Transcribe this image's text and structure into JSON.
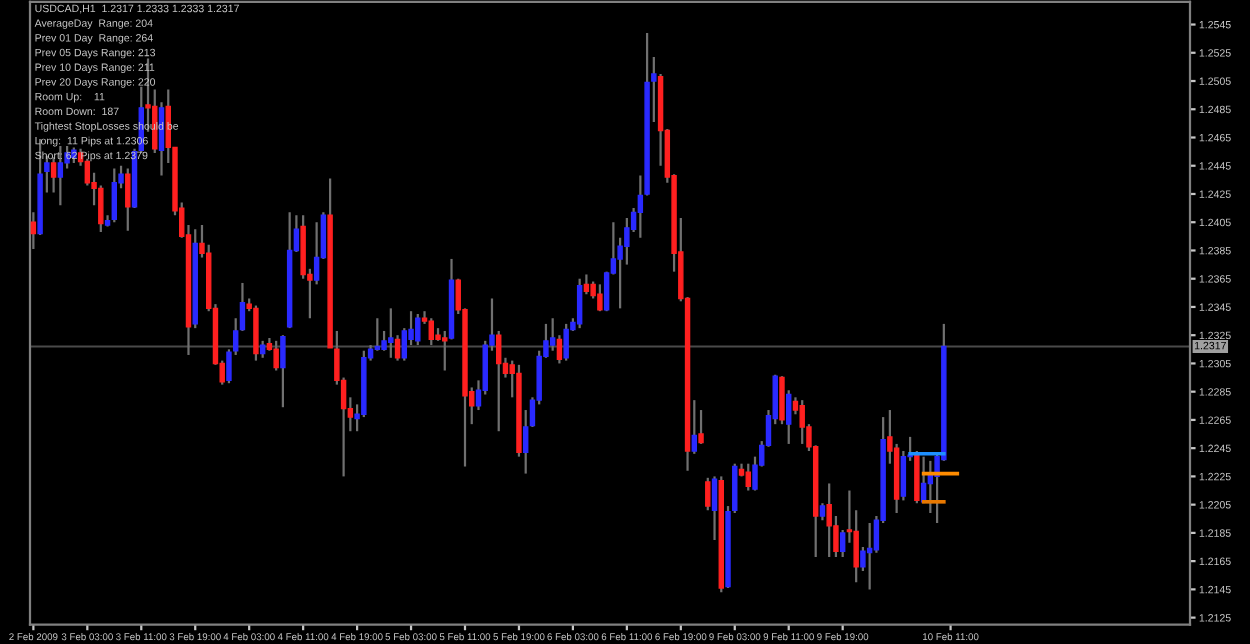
{
  "chart_data": {
    "type": "candlestick",
    "title": "USDCAD,H1  1.2317 1.2333 1.2333 1.2317",
    "annotations": [
      "AverageDay  Range: 204",
      "Prev 01 Day  Range: 264",
      "Prev 05 Days Range: 213",
      "Prev 10 Days Range: 211",
      "Prev 20 Days Range: 220",
      "Room Up:    11",
      "Room Down:  187",
      "Tightest StopLosses should be",
      "Long:  11 Pips at 1.2306",
      "Short: 62 Pips at 1.2379"
    ],
    "categories": [
      "2 Feb 2009",
      null,
      null,
      null,
      null,
      null,
      null,
      null,
      "3 Feb 03:00",
      null,
      null,
      null,
      null,
      null,
      null,
      null,
      "3 Feb 11:00",
      null,
      null,
      null,
      null,
      null,
      null,
      null,
      "3 Feb 19:00",
      null,
      null,
      null,
      null,
      null,
      null,
      null,
      "4 Feb 03:00",
      null,
      null,
      null,
      null,
      null,
      null,
      null,
      "4 Feb 11:00",
      null,
      null,
      null,
      null,
      null,
      null,
      null,
      "4 Feb 19:00",
      null,
      null,
      null,
      null,
      null,
      null,
      null,
      "5 Feb 03:00",
      null,
      null,
      null,
      null,
      null,
      null,
      null,
      "5 Feb 11:00",
      null,
      null,
      null,
      null,
      null,
      null,
      null,
      "5 Feb 19:00",
      null,
      null,
      null,
      null,
      null,
      null,
      null,
      "6 Feb 03:00",
      null,
      null,
      null,
      null,
      null,
      null,
      null,
      "6 Feb 11:00",
      null,
      null,
      null,
      null,
      null,
      null,
      null,
      "6 Feb 19:00",
      null,
      null,
      null,
      null,
      null,
      null,
      null,
      "9 Feb 03:00",
      null,
      null,
      null,
      null,
      null,
      null,
      null,
      "9 Feb 11:00",
      null,
      null,
      null,
      null,
      null,
      null,
      null,
      "9 Feb 19:00",
      null,
      null,
      null,
      null,
      null,
      null,
      null,
      null,
      null,
      null,
      null,
      null,
      null,
      null,
      null,
      "10 Feb 11:00",
      null,
      null,
      null,
      null,
      null,
      null,
      null,
      null,
      null,
      null,
      null,
      null,
      null,
      null,
      null,
      null,
      null,
      null,
      null,
      null,
      null,
      null,
      null,
      null,
      null,
      null,
      null,
      null,
      null,
      null,
      null,
      null,
      null,
      null,
      null
    ],
    "ohlc": [
      [
        1.2405,
        1.2412,
        1.2386,
        1.2397
      ],
      [
        1.2397,
        1.2464,
        1.2396,
        1.2439
      ],
      [
        1.2441,
        1.2452,
        1.2426,
        1.2447
      ],
      [
        1.2447,
        1.2451,
        1.2426,
        1.2437
      ],
      [
        1.2437,
        1.2459,
        1.2417,
        1.2447
      ],
      [
        1.2447,
        1.2459,
        1.2443,
        1.2454
      ],
      [
        1.2451,
        1.2458,
        1.2447,
        1.2456
      ],
      [
        1.2454,
        1.2457,
        1.2445,
        1.2448
      ],
      [
        1.2448,
        1.245,
        1.2431,
        1.2433
      ],
      [
        1.2433,
        1.244,
        1.2417,
        1.2429
      ],
      [
        1.2429,
        1.2431,
        1.2398,
        1.2404
      ],
      [
        1.2403,
        1.241,
        1.2402,
        1.2406
      ],
      [
        1.2407,
        1.2443,
        1.2405,
        1.2433
      ],
      [
        1.2433,
        1.2445,
        1.2429,
        1.2439
      ],
      [
        1.2439,
        1.2443,
        1.2399,
        1.2416
      ],
      [
        1.2416,
        1.2457,
        1.2415,
        1.2455
      ],
      [
        1.2456,
        1.2501,
        1.2454,
        1.2486
      ],
      [
        1.2488,
        1.2521,
        1.2469,
        1.2486
      ],
      [
        1.2487,
        1.2499,
        1.2454,
        1.2457
      ],
      [
        1.2456,
        1.249,
        1.2438,
        1.2486
      ],
      [
        1.2487,
        1.2499,
        1.2447,
        1.2458
      ],
      [
        1.2458,
        1.2458,
        1.241,
        1.2413
      ],
      [
        1.2415,
        1.2419,
        1.2394,
        1.2395
      ],
      [
        1.2396,
        1.2403,
        1.2311,
        1.2331
      ],
      [
        1.2333,
        1.24,
        1.233,
        1.239
      ],
      [
        1.239,
        1.2403,
        1.238,
        1.2383
      ],
      [
        1.2383,
        1.2389,
        1.2342,
        1.2344
      ],
      [
        1.2344,
        1.2347,
        1.2304,
        1.2305
      ],
      [
        1.2305,
        1.2307,
        1.229,
        1.2292
      ],
      [
        1.2293,
        1.2315,
        1.2291,
        1.2313
      ],
      [
        1.2314,
        1.2337,
        1.2311,
        1.2328
      ],
      [
        1.2329,
        1.2362,
        1.2328,
        1.2348
      ],
      [
        1.2347,
        1.2351,
        1.2342,
        1.2344
      ],
      [
        1.2344,
        1.2346,
        1.2307,
        1.2312
      ],
      [
        1.2312,
        1.2321,
        1.2309,
        1.2318
      ],
      [
        1.2319,
        1.2323,
        1.2314,
        1.2315
      ],
      [
        1.2315,
        1.2321,
        1.23,
        1.2302
      ],
      [
        1.2302,
        1.2325,
        1.2274,
        1.2324
      ],
      [
        1.2331,
        1.2412,
        1.233,
        1.2385
      ],
      [
        1.2385,
        1.241,
        1.2384,
        1.24
      ],
      [
        1.2402,
        1.241,
        1.2365,
        1.2368
      ],
      [
        1.2368,
        1.2372,
        1.2337,
        1.2364
      ],
      [
        1.2364,
        1.2405,
        1.2361,
        1.238
      ],
      [
        1.238,
        1.2412,
        1.2379,
        1.241
      ],
      [
        1.241,
        1.2436,
        1.2316,
        1.2316
      ],
      [
        1.2315,
        1.2328,
        1.229,
        1.2293
      ],
      [
        1.2293,
        1.2295,
        1.2225,
        1.2273
      ],
      [
        1.2273,
        1.2281,
        1.2257,
        1.2267
      ],
      [
        1.2266,
        1.2276,
        1.2257,
        1.2269
      ],
      [
        1.2269,
        1.2314,
        1.2267,
        1.2309
      ],
      [
        1.2309,
        1.2318,
        1.2307,
        1.2315
      ],
      [
        1.2315,
        1.2337,
        1.2314,
        1.2317
      ],
      [
        1.2315,
        1.2328,
        1.2314,
        1.2321
      ],
      [
        1.232,
        1.2344,
        1.2309,
        1.2323
      ],
      [
        1.2322,
        1.2325,
        1.2307,
        1.2309
      ],
      [
        1.2309,
        1.233,
        1.2307,
        1.2328
      ],
      [
        1.2322,
        1.2342,
        1.2318,
        1.2329
      ],
      [
        1.2321,
        1.234,
        1.2318,
        1.2337
      ],
      [
        1.2337,
        1.2342,
        1.2333,
        1.2335
      ],
      [
        1.2335,
        1.2337,
        1.2318,
        1.2322
      ],
      [
        1.2325,
        1.233,
        1.2321,
        1.2322
      ],
      [
        1.2323,
        1.2328,
        1.23,
        1.2321
      ],
      [
        1.2323,
        1.2379,
        1.2322,
        1.2364
      ],
      [
        1.2364,
        1.2365,
        1.234,
        1.2343
      ],
      [
        1.2343,
        1.2344,
        1.2232,
        1.2282
      ],
      [
        1.2285,
        1.2288,
        1.2262,
        1.2275
      ],
      [
        1.2275,
        1.2293,
        1.2272,
        1.2286
      ],
      [
        1.2286,
        1.2321,
        1.2283,
        1.2318
      ],
      [
        1.2318,
        1.2351,
        1.2314,
        1.2325
      ],
      [
        1.2325,
        1.2328,
        1.2257,
        1.2305
      ],
      [
        1.2305,
        1.2309,
        1.2295,
        1.2298
      ],
      [
        1.2304,
        1.2307,
        1.2281,
        1.2298
      ],
      [
        1.2298,
        1.2304,
        1.2239,
        1.2242
      ],
      [
        1.2242,
        1.2272,
        1.2227,
        1.226
      ],
      [
        1.2261,
        1.2281,
        1.226,
        1.2279
      ],
      [
        1.2279,
        1.2314,
        1.2276,
        1.231
      ],
      [
        1.231,
        1.2333,
        1.2309,
        1.2321
      ],
      [
        1.2318,
        1.2337,
        1.2314,
        1.2323
      ],
      [
        1.2322,
        1.2325,
        1.2305,
        1.2308
      ],
      [
        1.2309,
        1.2333,
        1.2307,
        1.2329
      ],
      [
        1.2329,
        1.2337,
        1.2328,
        1.2334
      ],
      [
        1.2333,
        1.2365,
        1.233,
        1.236
      ],
      [
        1.2361,
        1.2368,
        1.2354,
        1.2356
      ],
      [
        1.2361,
        1.2363,
        1.2351,
        1.2353
      ],
      [
        1.2354,
        1.2361,
        1.2342,
        1.2343
      ],
      [
        1.2343,
        1.237,
        1.2342,
        1.2369
      ],
      [
        1.2369,
        1.2405,
        1.2368,
        1.2379
      ],
      [
        1.2379,
        1.2394,
        1.2344,
        1.2388
      ],
      [
        1.2388,
        1.2408,
        1.2375,
        1.2401
      ],
      [
        1.24,
        1.2415,
        1.2398,
        1.2412
      ],
      [
        1.2412,
        1.2438,
        1.2394,
        1.2424
      ],
      [
        1.2425,
        1.2539,
        1.2424,
        1.2504
      ],
      [
        1.2505,
        1.2522,
        1.2476,
        1.251
      ],
      [
        1.2508,
        1.251,
        1.2445,
        1.247
      ],
      [
        1.247,
        1.2471,
        1.2433,
        1.2437
      ],
      [
        1.2438,
        1.2439,
        1.237,
        1.2383
      ],
      [
        1.2384,
        1.2408,
        1.2349,
        1.2351
      ],
      [
        1.2351,
        1.2352,
        1.2229,
        1.2243
      ],
      [
        1.2243,
        1.2279,
        1.2241,
        1.2254
      ],
      [
        1.2255,
        1.2272,
        1.2248,
        1.2249
      ],
      [
        1.2221,
        1.2224,
        1.2201,
        1.2204
      ],
      [
        1.2201,
        1.2225,
        1.218,
        1.2223
      ],
      [
        1.2222,
        1.2225,
        1.2143,
        1.2146
      ],
      [
        1.2147,
        1.2204,
        1.2146,
        1.22
      ],
      [
        1.2201,
        1.2234,
        1.2199,
        1.2232
      ],
      [
        1.223,
        1.2234,
        1.2225,
        1.2226
      ],
      [
        1.2228,
        1.2234,
        1.2215,
        1.2218
      ],
      [
        1.2216,
        1.2239,
        1.2215,
        1.2233
      ],
      [
        1.2233,
        1.225,
        1.2232,
        1.2247
      ],
      [
        1.2247,
        1.2272,
        1.2246,
        1.2268
      ],
      [
        1.2266,
        1.2297,
        1.2262,
        1.2296
      ],
      [
        1.2295,
        1.2296,
        1.2262,
        1.2265
      ],
      [
        1.2262,
        1.2286,
        1.2248,
        1.2283
      ],
      [
        1.2278,
        1.2281,
        1.2269,
        1.2272
      ],
      [
        1.2275,
        1.2279,
        1.2248,
        1.226
      ],
      [
        1.226,
        1.2262,
        1.2243,
        1.2246
      ],
      [
        1.2246,
        1.2247,
        1.2168,
        1.2197
      ],
      [
        1.2197,
        1.2206,
        1.2194,
        1.2204
      ],
      [
        1.2205,
        1.222,
        1.2168,
        1.219
      ],
      [
        1.219,
        1.2197,
        1.2168,
        1.2172
      ],
      [
        1.2172,
        1.2187,
        1.2168,
        1.2185
      ],
      [
        1.2187,
        1.2215,
        1.2178,
        1.2186
      ],
      [
        1.2186,
        1.2201,
        1.215,
        1.2161
      ],
      [
        1.2161,
        1.2175,
        1.2158,
        1.2172
      ],
      [
        1.2171,
        1.2192,
        1.2145,
        1.2174
      ],
      [
        1.2173,
        1.2197,
        1.2171,
        1.2194
      ],
      [
        1.2194,
        1.2267,
        1.2192,
        1.2251
      ],
      [
        1.2253,
        1.2272,
        1.2234,
        1.2243
      ],
      [
        1.2245,
        1.2248,
        1.2199,
        1.2209
      ],
      [
        1.2211,
        1.2243,
        1.2208,
        1.2239
      ],
      [
        1.2239,
        1.2253,
        1.2236,
        1.224
      ],
      [
        1.224,
        1.2243,
        1.2206,
        1.2208
      ],
      [
        1.2207,
        1.2239,
        1.2206,
        1.222
      ],
      [
        1.222,
        1.2236,
        1.2199,
        1.2226
      ],
      [
        1.2225,
        1.2241,
        1.2192,
        1.2239
      ],
      [
        1.2237,
        1.2333,
        1.2236,
        1.2317
      ],
      null,
      null,
      null,
      null,
      null,
      null,
      null,
      null,
      null,
      null,
      null,
      null,
      null,
      null,
      null,
      null,
      null,
      null,
      null,
      null,
      null,
      null,
      null,
      null,
      null,
      null,
      null,
      null,
      null,
      null,
      null,
      null,
      null,
      null,
      null,
      null
    ],
    "colors": [
      "#ff2020",
      "#2a2aff",
      "#2a2aff",
      "#ff2020",
      "#2a2aff",
      "#2a2aff",
      "#2a2aff",
      "#ff2020",
      "#ff2020",
      "#ff2020",
      "#ff2020",
      "#2a2aff",
      "#2a2aff",
      "#2a2aff",
      "#ff2020",
      "#2a2aff",
      "#2a2aff",
      "#ff2020",
      "#ff2020",
      "#2a2aff",
      "#ff2020",
      "#ff2020",
      "#ff2020",
      "#ff2020",
      "#2a2aff",
      "#ff2020",
      "#ff2020",
      "#ff2020",
      "#ff2020",
      "#2a2aff",
      "#2a2aff",
      "#2a2aff",
      "#ff2020",
      "#ff2020",
      "#2a2aff",
      "#ff2020",
      "#ff2020",
      "#2a2aff",
      "#2a2aff",
      "#2a2aff",
      "#ff2020",
      "#ff2020",
      "#2a2aff",
      "#2a2aff",
      "#ff2020",
      "#ff2020",
      "#ff2020",
      "#ff2020",
      "#2a2aff",
      "#2a2aff",
      "#2a2aff",
      "#2a2aff",
      "#2a2aff",
      "#2a2aff",
      "#ff2020",
      "#2a2aff",
      "#2a2aff",
      "#2a2aff",
      "#ff2020",
      "#ff2020",
      "#ff2020",
      "#ff2020",
      "#2a2aff",
      "#ff2020",
      "#ff2020",
      "#ff2020",
      "#2a2aff",
      "#2a2aff",
      "#2a2aff",
      "#ff2020",
      "#ff2020",
      "#ff2020",
      "#ff2020",
      "#2a2aff",
      "#2a2aff",
      "#2a2aff",
      "#2a2aff",
      "#2a2aff",
      "#ff2020",
      "#2a2aff",
      "#2a2aff",
      "#2a2aff",
      "#ff2020",
      "#ff2020",
      "#ff2020",
      "#2a2aff",
      "#2a2aff",
      "#2a2aff",
      "#2a2aff",
      "#2a2aff",
      "#2a2aff",
      "#2a2aff",
      "#2a2aff",
      "#ff2020",
      "#ff2020",
      "#ff2020",
      "#ff2020",
      "#ff2020",
      "#2a2aff",
      "#ff2020",
      "#ff2020",
      "#2a2aff",
      "#ff2020",
      "#2a2aff",
      "#2a2aff",
      "#ff2020",
      "#ff2020",
      "#2a2aff",
      "#2a2aff",
      "#2a2aff",
      "#2a2aff",
      "#ff2020",
      "#2a2aff",
      "#ff2020",
      "#ff2020",
      "#ff2020",
      "#ff2020",
      "#2a2aff",
      "#ff2020",
      "#ff2020",
      "#2a2aff",
      "#ff2020",
      "#ff2020",
      "#2a2aff",
      "#2a2aff",
      "#2a2aff",
      "#2a2aff",
      "#ff2020",
      "#ff2020",
      "#2a2aff",
      "#2a2aff",
      "#ff2020",
      "#2a2aff",
      "#2a2aff",
      "#2a2aff",
      "#2a2aff",
      null,
      null,
      null,
      null,
      null,
      null,
      null,
      null,
      null,
      null,
      null,
      null,
      null,
      null,
      null,
      null,
      null,
      null,
      null,
      null,
      null,
      null,
      null,
      null,
      null,
      null,
      null,
      null,
      null,
      null,
      null,
      null,
      null,
      null,
      null,
      null
    ],
    "series": [
      {
        "type": "line",
        "color": "#1e90ff",
        "values": [
          null,
          null,
          null,
          null,
          null,
          null,
          null,
          null,
          null,
          null,
          null,
          null,
          null,
          null,
          null,
          null,
          null,
          null,
          null,
          null,
          null,
          null,
          null,
          null,
          null,
          null,
          null,
          null,
          null,
          null,
          null,
          null,
          null,
          null,
          null,
          null,
          null,
          null,
          null,
          null,
          null,
          null,
          null,
          null,
          null,
          null,
          null,
          null,
          null,
          null,
          null,
          null,
          null,
          null,
          null,
          null,
          null,
          null,
          null,
          null,
          null,
          null,
          null,
          null,
          null,
          null,
          null,
          null,
          null,
          null,
          null,
          null,
          null,
          null,
          null,
          null,
          null,
          null,
          null,
          null,
          null,
          null,
          null,
          null,
          null,
          null,
          null,
          null,
          null,
          null,
          null,
          null,
          null,
          null,
          null,
          null,
          null,
          null,
          null,
          null,
          null,
          null,
          null,
          null,
          null,
          null,
          null,
          null,
          null,
          null,
          null,
          null,
          null,
          null,
          null,
          null,
          null,
          null,
          null,
          null,
          null,
          null,
          null,
          null,
          null,
          null,
          null,
          null,
          null,
          null,
          1.2241,
          1.2241,
          1.2241,
          1.2241,
          1.2241,
          1.2241,
          null,
          null,
          null,
          null,
          null,
          null,
          null,
          null,
          null,
          null,
          null,
          null,
          null,
          null,
          null,
          null,
          null,
          null,
          null,
          null,
          null,
          null,
          null,
          null,
          null,
          null,
          null,
          null,
          null,
          null,
          null,
          null,
          null,
          null,
          null,
          null
        ]
      },
      {
        "type": "line",
        "color": "#ff8c00",
        "values": [
          null,
          null,
          null,
          null,
          null,
          null,
          null,
          null,
          null,
          null,
          null,
          null,
          null,
          null,
          null,
          null,
          null,
          null,
          null,
          null,
          null,
          null,
          null,
          null,
          null,
          null,
          null,
          null,
          null,
          null,
          null,
          null,
          null,
          null,
          null,
          null,
          null,
          null,
          null,
          null,
          null,
          null,
          null,
          null,
          null,
          null,
          null,
          null,
          null,
          null,
          null,
          null,
          null,
          null,
          null,
          null,
          null,
          null,
          null,
          null,
          null,
          null,
          null,
          null,
          null,
          null,
          null,
          null,
          null,
          null,
          null,
          null,
          null,
          null,
          null,
          null,
          null,
          null,
          null,
          null,
          null,
          null,
          null,
          null,
          null,
          null,
          null,
          null,
          null,
          null,
          null,
          null,
          null,
          null,
          null,
          null,
          null,
          null,
          null,
          null,
          null,
          null,
          null,
          null,
          null,
          null,
          null,
          null,
          null,
          null,
          null,
          null,
          null,
          null,
          null,
          null,
          null,
          null,
          null,
          null,
          null,
          null,
          null,
          null,
          null,
          null,
          null,
          null,
          null,
          null,
          null,
          null,
          1.2227,
          1.2227,
          1.2227,
          1.2227,
          1.2227,
          1.2227,
          null,
          null,
          null,
          null,
          null,
          null,
          null,
          null,
          null,
          null,
          null,
          null,
          null,
          null,
          null,
          null,
          null,
          null,
          null,
          null,
          null,
          null,
          null,
          null,
          null,
          null,
          null,
          null,
          null,
          null,
          null,
          null,
          null,
          null
        ]
      },
      {
        "type": "line",
        "color": "#e87800",
        "values": [
          null,
          null,
          null,
          null,
          null,
          null,
          null,
          null,
          null,
          null,
          null,
          null,
          null,
          null,
          null,
          null,
          null,
          null,
          null,
          null,
          null,
          null,
          null,
          null,
          null,
          null,
          null,
          null,
          null,
          null,
          null,
          null,
          null,
          null,
          null,
          null,
          null,
          null,
          null,
          null,
          null,
          null,
          null,
          null,
          null,
          null,
          null,
          null,
          null,
          null,
          null,
          null,
          null,
          null,
          null,
          null,
          null,
          null,
          null,
          null,
          null,
          null,
          null,
          null,
          null,
          null,
          null,
          null,
          null,
          null,
          null,
          null,
          null,
          null,
          null,
          null,
          null,
          null,
          null,
          null,
          null,
          null,
          null,
          null,
          null,
          null,
          null,
          null,
          null,
          null,
          null,
          null,
          null,
          null,
          null,
          null,
          null,
          null,
          null,
          null,
          null,
          null,
          null,
          null,
          null,
          null,
          null,
          null,
          null,
          null,
          null,
          null,
          null,
          null,
          null,
          null,
          null,
          null,
          null,
          null,
          null,
          null,
          null,
          null,
          null,
          null,
          null,
          null,
          null,
          null,
          null,
          null,
          1.2207,
          1.2207,
          1.2207,
          1.2207,
          null,
          null,
          null,
          null,
          null,
          null,
          null,
          null,
          null,
          null,
          null,
          null,
          null,
          null,
          null,
          null,
          null,
          null,
          null,
          null,
          null,
          null,
          null,
          null,
          null,
          null,
          null,
          null,
          null,
          null,
          null,
          null,
          null,
          null,
          null,
          null
        ]
      }
    ],
    "ylim": [
      1.212,
      1.2561
    ],
    "yticks": [
      1.2125,
      1.2145,
      1.2165,
      1.2185,
      1.2205,
      1.2225,
      1.2245,
      1.2265,
      1.2285,
      1.2305,
      1.2325,
      1.2345,
      1.2365,
      1.2385,
      1.2405,
      1.2425,
      1.2445,
      1.2465,
      1.2485,
      1.2505,
      1.2525,
      1.2545
    ],
    "ref_lines": [
      {
        "axis": "y",
        "value": 1.2317,
        "label": "1.2317",
        "color": "#4a4a4a"
      }
    ]
  }
}
